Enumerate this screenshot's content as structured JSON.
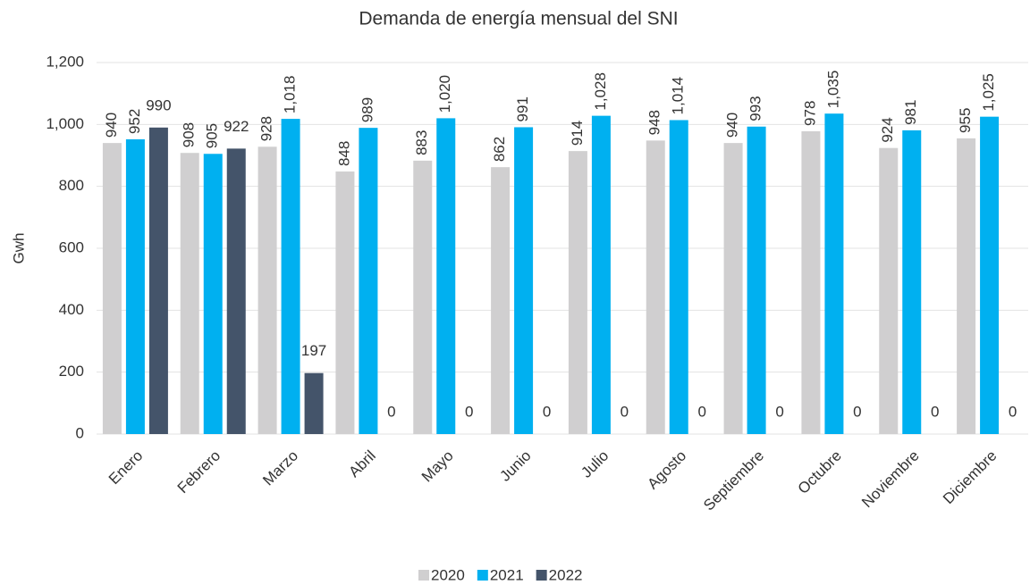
{
  "chart_data": {
    "type": "bar",
    "title": "Demanda de energía mensual del SNI",
    "y_label": "Gwh",
    "categories": [
      "Enero",
      "Febrero",
      "Marzo",
      "Abril",
      "Mayo",
      "Junio",
      "Julio",
      "Agosto",
      "Septiembre",
      "Octubre",
      "Noviembre",
      "Diciembre"
    ],
    "series": [
      {
        "name": "2020",
        "color": "#d0cfd0",
        "values": [
          940,
          908,
          928,
          848,
          883,
          862,
          914,
          948,
          940,
          978,
          924,
          955
        ]
      },
      {
        "name": "2021",
        "color": "#00b0f0",
        "values": [
          952,
          905,
          1018,
          989,
          1020,
          991,
          1028,
          1014,
          993,
          1035,
          981,
          1025
        ],
        "value_labels": [
          "952",
          "905",
          "1,018",
          "989",
          "1,020",
          "991",
          "1,028",
          "1,014",
          "993",
          "1,035",
          "981",
          "1,025"
        ]
      },
      {
        "name": "2022",
        "color": "#44546a",
        "values": [
          990,
          922,
          197,
          0,
          0,
          0,
          0,
          0,
          0,
          0,
          0,
          0
        ]
      }
    ],
    "ylim": [
      0,
      1200
    ],
    "yticks": [
      0,
      200,
      400,
      600,
      800,
      {
        "value": 1000,
        "label": "1,000"
      },
      {
        "value": 1200,
        "label": "1,200"
      }
    ],
    "grid": true,
    "legend": "bottom"
  }
}
